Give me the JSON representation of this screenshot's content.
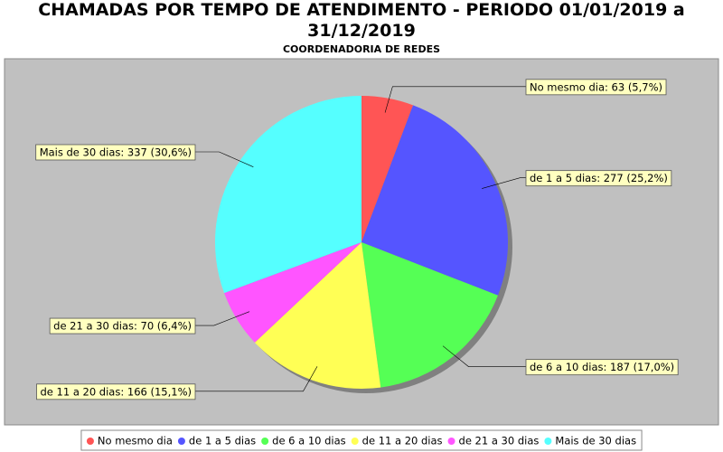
{
  "chart_data": {
    "type": "pie",
    "title": "CHAMADAS POR TEMPO DE ATENDIMENTO - PERIODO 01/01/2019 a 31/12/2019",
    "subtitle": "COORDENADORIA DE REDES",
    "categories": [
      "No mesmo dia",
      "de 1 a 5 dias",
      "de 6 a 10 dias",
      "de 11 a 20 dias",
      "de 21 a 30 dias",
      "Mais de 30 dias"
    ],
    "values": [
      63,
      277,
      187,
      166,
      70,
      337
    ],
    "value_labels": [
      "No mesmo dia: 63 (5,7%)",
      "de 1 a 5 dias: 277 (25,2%)",
      "de 6 a 10 dias: 187 (17,0%)",
      "de 11 a 20 dias: 166 (15,1%)",
      "de 21 a 30 dias: 70 (6,4%)",
      "Mais de 30 dias: 337 (30,6%)"
    ],
    "colors": [
      "#ff5555",
      "#5555ff",
      "#55ff55",
      "#ffff55",
      "#ff55ff",
      "#55ffff"
    ],
    "legend": "bottom"
  }
}
